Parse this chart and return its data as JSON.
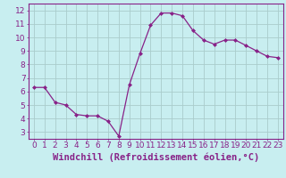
{
  "x": [
    0,
    1,
    2,
    3,
    4,
    5,
    6,
    7,
    8,
    9,
    10,
    11,
    12,
    13,
    14,
    15,
    16,
    17,
    18,
    19,
    20,
    21,
    22,
    23
  ],
  "y": [
    6.3,
    6.3,
    5.2,
    5.0,
    4.3,
    4.2,
    4.2,
    3.8,
    2.7,
    6.5,
    8.8,
    10.9,
    11.8,
    11.8,
    11.6,
    10.5,
    9.8,
    9.5,
    9.8,
    9.8,
    9.4,
    9.0,
    8.6,
    8.5
  ],
  "line_color": "#882288",
  "marker": "D",
  "marker_size": 2.0,
  "background_color": "#c8eef0",
  "grid_color": "#aacccc",
  "xlabel": "Windchill (Refroidissement éolien,°C)",
  "xlabel_color": "#882288",
  "xlim": [
    -0.5,
    23.5
  ],
  "ylim": [
    2.5,
    12.5
  ],
  "xticks": [
    0,
    1,
    2,
    3,
    4,
    5,
    6,
    7,
    8,
    9,
    10,
    11,
    12,
    13,
    14,
    15,
    16,
    17,
    18,
    19,
    20,
    21,
    22,
    23
  ],
  "yticks": [
    3,
    4,
    5,
    6,
    7,
    8,
    9,
    10,
    11,
    12
  ],
  "tick_fontsize": 6.5,
  "xlabel_fontsize": 7.5
}
